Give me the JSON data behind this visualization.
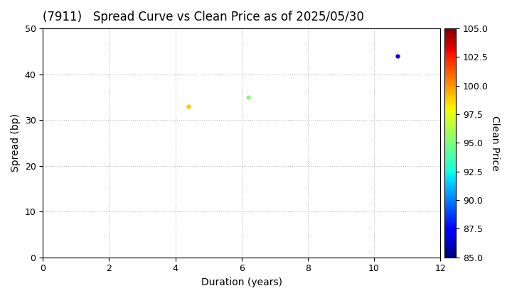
{
  "title": "(7911)   Spread Curve vs Clean Price as of 2025/05/30",
  "xlabel": "Duration (years)",
  "ylabel": "Spread (bp)",
  "colorbar_label": "Clean Price",
  "xlim": [
    0,
    12
  ],
  "ylim": [
    0,
    50
  ],
  "xticks": [
    0,
    2,
    4,
    6,
    8,
    10,
    12
  ],
  "yticks": [
    0,
    10,
    20,
    30,
    40,
    50
  ],
  "cmap_min": 85.0,
  "cmap_max": 105.0,
  "colorbar_ticks": [
    85.0,
    87.5,
    90.0,
    92.5,
    95.0,
    97.5,
    100.0,
    102.5,
    105.0
  ],
  "points": [
    {
      "duration": 4.4,
      "spread": 33,
      "clean_price": 99.0
    },
    {
      "duration": 6.2,
      "spread": 35,
      "clean_price": 95.0
    },
    {
      "duration": 10.7,
      "spread": 44,
      "clean_price": 87.0
    }
  ],
  "marker": "o",
  "marker_size": 20,
  "grid_color": "#bbbbbb",
  "grid_style": "dotted",
  "background_color": "#ffffff",
  "title_fontsize": 12,
  "axis_label_fontsize": 10,
  "tick_fontsize": 9
}
